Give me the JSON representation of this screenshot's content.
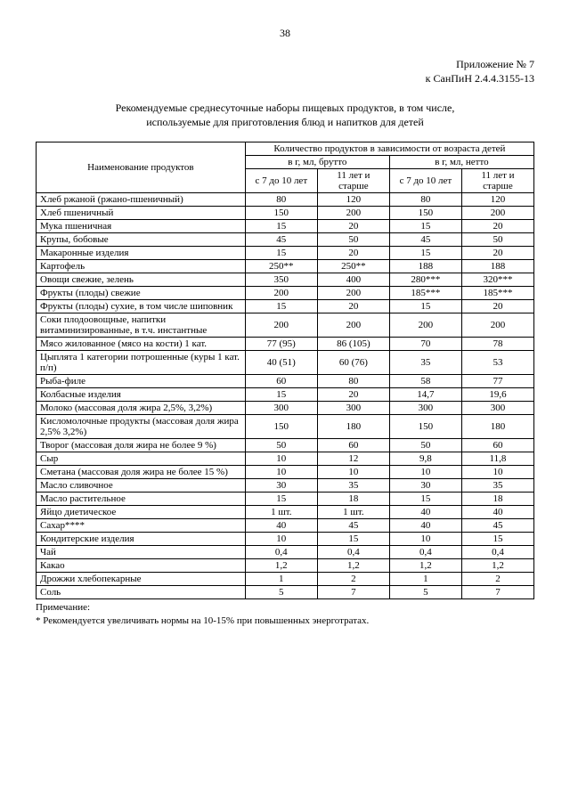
{
  "page_number": "38",
  "appendix_line1": "Приложение № 7",
  "appendix_line2": "к СанПиН 2.4.4.3155-13",
  "title_line1": "Рекомендуемые среднесуточные наборы пищевых продуктов, в том числе,",
  "title_line2": "используемые для приготовления блюд и напитков для детей",
  "header": {
    "col_name": "Наименование продуктов",
    "col_qty": "Количество продуктов в зависимости от возраста детей",
    "brutto": "в г, мл, брутто",
    "netto": "в г, мл, нетто",
    "age1": "с 7 до 10 лет",
    "age2": "11 лет и старше"
  },
  "rows": [
    {
      "name": "Хлеб ржаной (ржано-пшеничный)",
      "b1": "80",
      "b2": "120",
      "n1": "80",
      "n2": "120"
    },
    {
      "name": "Хлеб пшеничный",
      "b1": "150",
      "b2": "200",
      "n1": "150",
      "n2": "200"
    },
    {
      "name": "Мука пшеничная",
      "b1": "15",
      "b2": "20",
      "n1": "15",
      "n2": "20"
    },
    {
      "name": "Крупы, бобовые",
      "b1": "45",
      "b2": "50",
      "n1": "45",
      "n2": "50"
    },
    {
      "name": "Макаронные изделия",
      "b1": "15",
      "b2": "20",
      "n1": "15",
      "n2": "20"
    },
    {
      "name": "Картофель",
      "b1": "250**",
      "b2": "250**",
      "n1": "188",
      "n2": "188"
    },
    {
      "name": "Овощи свежие, зелень",
      "b1": "350",
      "b2": "400",
      "n1": "280***",
      "n2": "320***"
    },
    {
      "name": "Фрукты (плоды) свежие",
      "b1": "200",
      "b2": "200",
      "n1": "185***",
      "n2": "185***"
    },
    {
      "name": "Фрукты (плоды) сухие, в том числе шиповник",
      "b1": "15",
      "b2": "20",
      "n1": "15",
      "n2": "20"
    },
    {
      "name": "Соки плодоовощные, напитки витаминизированные, в т.ч. инстантные",
      "b1": "200",
      "b2": "200",
      "n1": "200",
      "n2": "200"
    },
    {
      "name": "Мясо жилованное (мясо на кости) 1 кат.",
      "b1": "77 (95)",
      "b2": "86 (105)",
      "n1": "70",
      "n2": "78"
    },
    {
      "name": "Цыплята 1 категории потрошенные (куры 1 кат. п/п)",
      "b1": "40 (51)",
      "b2": "60 (76)",
      "n1": "35",
      "n2": "53"
    },
    {
      "name": "Рыба-филе",
      "b1": "60",
      "b2": "80",
      "n1": "58",
      "n2": "77"
    },
    {
      "name": "Колбасные изделия",
      "b1": "15",
      "b2": "20",
      "n1": "14,7",
      "n2": "19,6"
    },
    {
      "name": "Молоко (массовая доля жира 2,5%, 3,2%)",
      "b1": "300",
      "b2": "300",
      "n1": "300",
      "n2": "300"
    },
    {
      "name": "Кисломолочные продукты (массовая доля жира 2,5% 3,2%)",
      "b1": "150",
      "b2": "180",
      "n1": "150",
      "n2": "180"
    },
    {
      "name": "Творог (массовая доля жира не более 9 %)",
      "b1": "50",
      "b2": "60",
      "n1": "50",
      "n2": "60"
    },
    {
      "name": "Сыр",
      "b1": "10",
      "b2": "12",
      "n1": "9,8",
      "n2": "11,8"
    },
    {
      "name": "Сметана (массовая доля жира не более 15 %)",
      "b1": "10",
      "b2": "10",
      "n1": "10",
      "n2": "10"
    },
    {
      "name": "Масло сливочное",
      "b1": "30",
      "b2": "35",
      "n1": "30",
      "n2": "35"
    },
    {
      "name": "Масло растительное",
      "b1": "15",
      "b2": "18",
      "n1": "15",
      "n2": "18"
    },
    {
      "name": "Яйцо диетическое",
      "b1": "1 шт.",
      "b2": "1 шт.",
      "n1": "40",
      "n2": "40"
    },
    {
      "name": "Сахар****",
      "b1": "40",
      "b2": "45",
      "n1": "40",
      "n2": "45"
    },
    {
      "name": "Кондитерские изделия",
      "b1": "10",
      "b2": "15",
      "n1": "10",
      "n2": "15"
    },
    {
      "name": "Чай",
      "b1": "0,4",
      "b2": "0,4",
      "n1": "0,4",
      "n2": "0,4"
    },
    {
      "name": "Какао",
      "b1": "1,2",
      "b2": "1,2",
      "n1": "1,2",
      "n2": "1,2"
    },
    {
      "name": "Дрожжи хлебопекарные",
      "b1": "1",
      "b2": "2",
      "n1": "1",
      "n2": "2"
    },
    {
      "name": "Соль",
      "b1": "5",
      "b2": "7",
      "n1": "5",
      "n2": "7"
    }
  ],
  "footnote_label": "Примечание:",
  "footnote_1": "* Рекомендуется увеличивать нормы на 10-15% при повышенных энерготратах."
}
